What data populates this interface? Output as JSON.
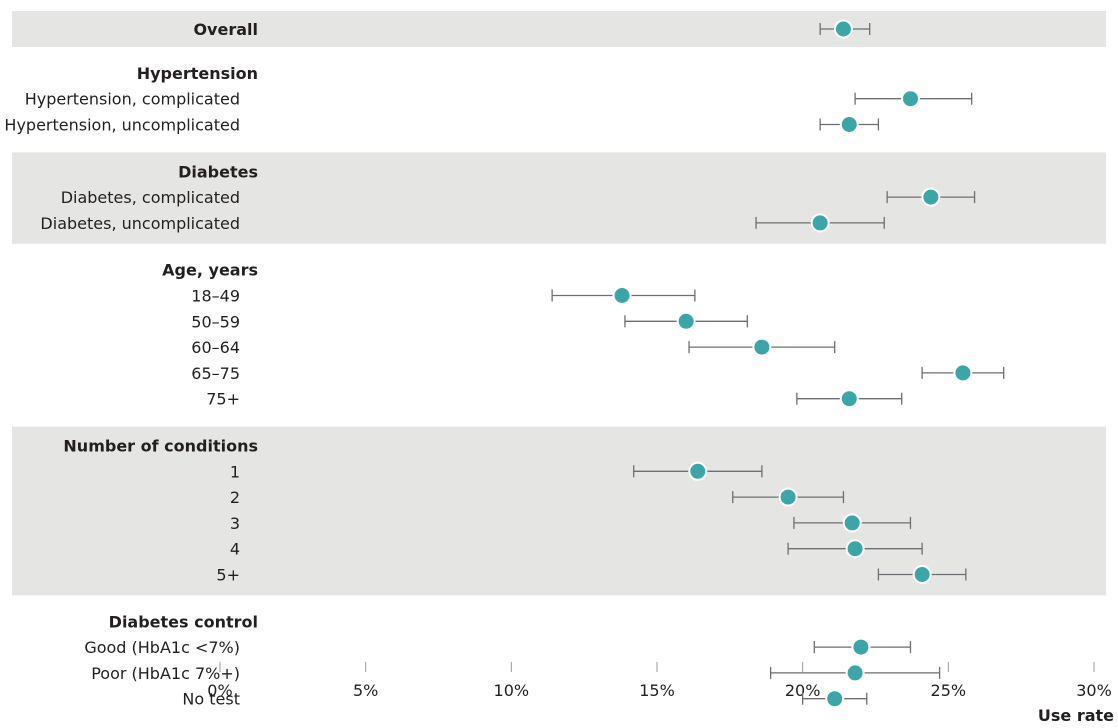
{
  "chart_data": {
    "type": "forest",
    "xlabel": "Use rate",
    "xlim": [
      0,
      30
    ],
    "xticks": [
      "0%",
      "5%",
      "10%",
      "15%",
      "20%",
      "25%",
      "30%"
    ],
    "xtick_values": [
      0,
      5,
      10,
      15,
      20,
      25,
      30
    ],
    "groups": [
      {
        "title": "Overall",
        "shaded": true,
        "title_is_row": true,
        "rows": [
          {
            "label": "Overall",
            "estimate": 21.4,
            "lower": 20.6,
            "upper": 22.3
          }
        ]
      },
      {
        "title": "Hypertension",
        "shaded": false,
        "rows": [
          {
            "label": "Hypertension, complicated",
            "estimate": 23.7,
            "lower": 21.8,
            "upper": 25.8
          },
          {
            "label": "Hypertension, uncomplicated",
            "estimate": 21.6,
            "lower": 20.6,
            "upper": 22.6
          }
        ]
      },
      {
        "title": "Diabetes",
        "shaded": true,
        "rows": [
          {
            "label": "Diabetes, complicated",
            "estimate": 24.4,
            "lower": 22.9,
            "upper": 25.9
          },
          {
            "label": "Diabetes, uncomplicated",
            "estimate": 20.6,
            "lower": 18.4,
            "upper": 22.8
          }
        ]
      },
      {
        "title": "Age, years",
        "shaded": false,
        "rows": [
          {
            "label": "18–49",
            "estimate": 13.8,
            "lower": 11.4,
            "upper": 16.3
          },
          {
            "label": "50–59",
            "estimate": 16.0,
            "lower": 13.9,
            "upper": 18.1
          },
          {
            "label": "60–64",
            "estimate": 18.6,
            "lower": 16.1,
            "upper": 21.1
          },
          {
            "label": "65–75",
            "estimate": 25.5,
            "lower": 24.1,
            "upper": 26.9
          },
          {
            "label": "75+",
            "estimate": 21.6,
            "lower": 19.8,
            "upper": 23.4
          }
        ]
      },
      {
        "title": "Number of conditions",
        "shaded": true,
        "rows": [
          {
            "label": "1",
            "estimate": 16.4,
            "lower": 14.2,
            "upper": 18.6
          },
          {
            "label": "2",
            "estimate": 19.5,
            "lower": 17.6,
            "upper": 21.4
          },
          {
            "label": "3",
            "estimate": 21.7,
            "lower": 19.7,
            "upper": 23.7
          },
          {
            "label": "4",
            "estimate": 21.8,
            "lower": 19.5,
            "upper": 24.1
          },
          {
            "label": "5+",
            "estimate": 24.1,
            "lower": 22.6,
            "upper": 25.6
          }
        ]
      },
      {
        "title": "Diabetes control",
        "shaded": false,
        "rows": [
          {
            "label": "Good (HbA1c <7%)",
            "estimate": 22.0,
            "lower": 20.4,
            "upper": 23.7
          },
          {
            "label": "Poor (HbA1c 7%+)",
            "estimate": 21.8,
            "lower": 18.9,
            "upper": 24.7
          },
          {
            "label": "No test",
            "estimate": 21.1,
            "lower": 20.0,
            "upper": 22.2
          }
        ]
      }
    ],
    "colors": {
      "point": "#3aa6a8",
      "band": "#e5e5e4",
      "ci": "#6d6e71"
    }
  }
}
